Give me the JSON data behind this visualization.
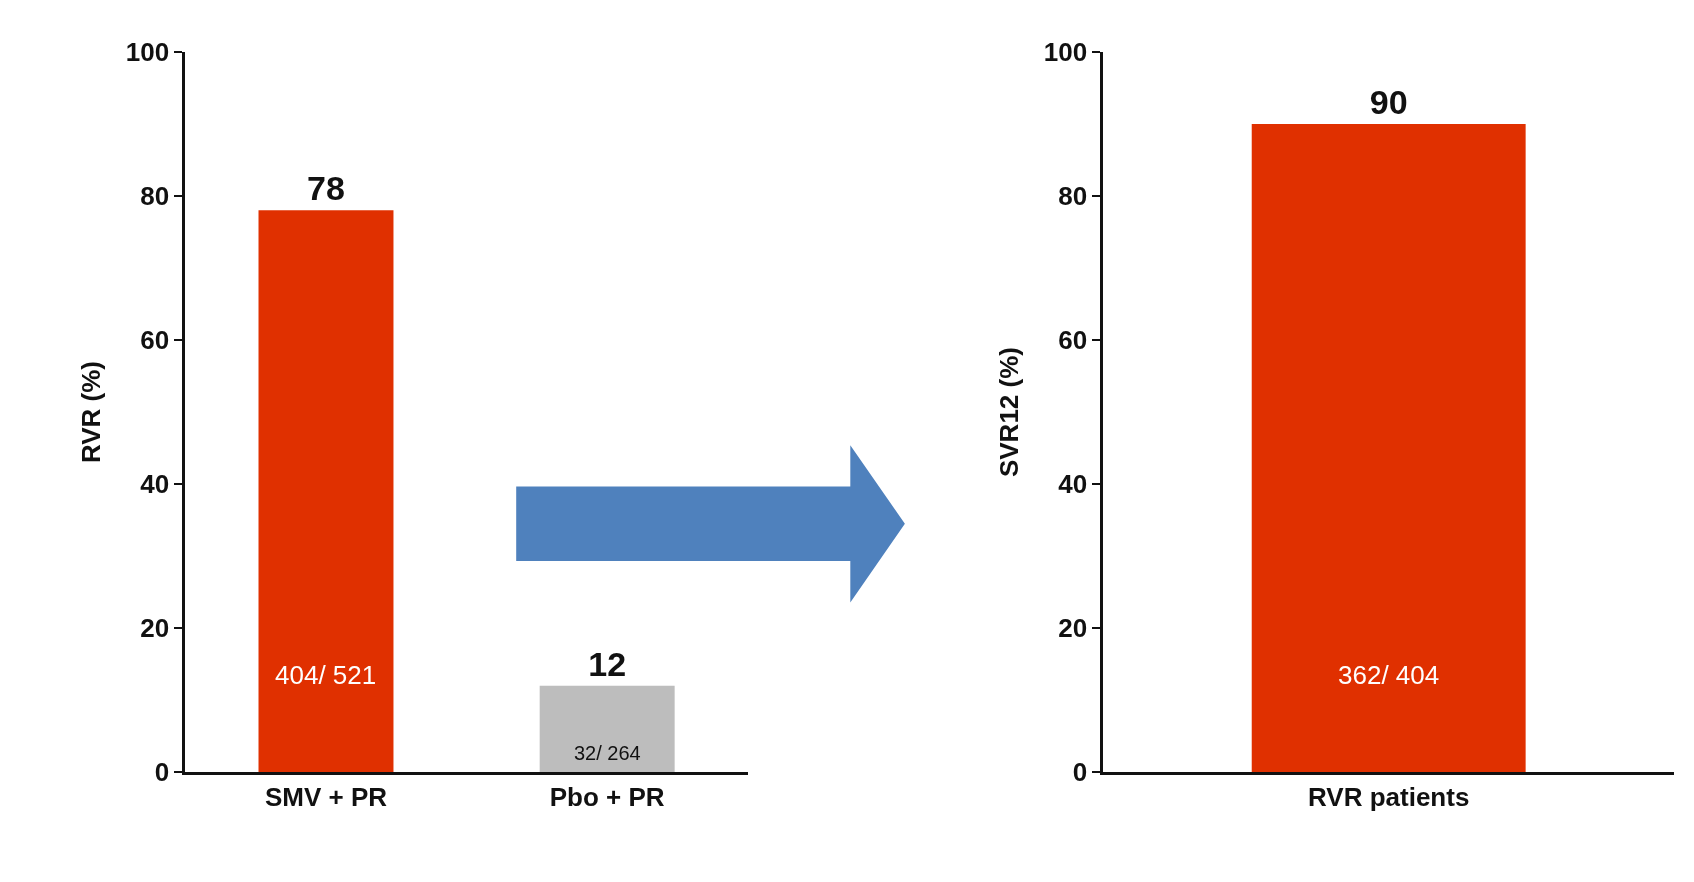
{
  "chart_data": [
    {
      "type": "bar",
      "ylabel": "RVR (%)",
      "categories": [
        "SMV + PR",
        "Pbo + PR"
      ],
      "values": [
        78,
        12
      ],
      "colors": [
        "#e03000",
        "#bdbdbd"
      ],
      "ylim": [
        0,
        100
      ],
      "yticks": [
        0,
        20,
        40,
        60,
        80,
        100
      ],
      "data_labels": true,
      "annotations": [
        "404/ 521",
        "32/ 264"
      ]
    },
    {
      "type": "bar",
      "ylabel": "SVR12 (%)",
      "categories": [
        "RVR patients"
      ],
      "values": [
        90
      ],
      "colors": [
        "#e03000"
      ],
      "ylim": [
        0,
        100
      ],
      "yticks": [
        0,
        20,
        40,
        60,
        80,
        100
      ],
      "data_labels": true,
      "annotations": [
        "362/ 404"
      ]
    }
  ]
}
